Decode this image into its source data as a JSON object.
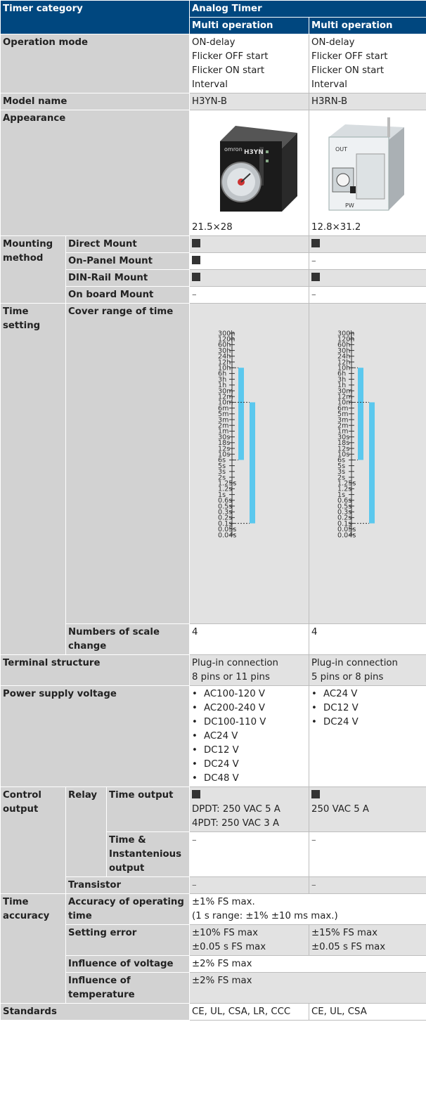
{
  "header": {
    "timer_category": "Timer category",
    "analog_timer": "Analog Timer",
    "multi_operation_1": "Multi operation",
    "multi_operation_2": "Multi operation"
  },
  "operation_mode": {
    "label": "Operation mode",
    "col1": [
      "ON-delay",
      "Flicker OFF start",
      "Flicker ON start",
      "Interval"
    ],
    "col2": [
      "ON-delay",
      "Flicker OFF start",
      "Flicker ON start",
      "Interval"
    ]
  },
  "model_name": {
    "label": "Model name",
    "col1": "H3YN-B",
    "col2": "H3RN-B"
  },
  "appearance": {
    "label": "Appearance",
    "col1_size": "21.5×28",
    "col2_size": "12.8×31.2",
    "col1_brand": "omron",
    "col1_model": "H3YN",
    "col2_out": "OUT",
    "col2_pw": "PW"
  },
  "mounting": {
    "label": "Mounting method",
    "rows": [
      {
        "label": "Direct Mount",
        "col1": "filled",
        "col2": "filled"
      },
      {
        "label": "On-Panel Mount",
        "col1": "filled",
        "col2": "–"
      },
      {
        "label": "DIN-Rail Mount",
        "col1": "filled",
        "col2": "filled"
      },
      {
        "label": "On board Mount",
        "col1": "–",
        "col2": "–"
      }
    ]
  },
  "time_setting": {
    "label": "Time setting",
    "cover_range_label": "Cover range of time",
    "scale_change_label": "Numbers of scale change",
    "scale_change_col1": "4",
    "scale_change_col2": "4"
  },
  "chart_data": {
    "type": "range",
    "ticks": [
      "300h",
      "120h",
      "60h",
      "30h",
      "24h",
      "12h",
      "10h",
      "6h",
      "3h",
      "1h",
      "30m",
      "12m",
      "10m",
      "6m",
      "5m",
      "3m",
      "2m",
      "1m",
      "30s",
      "18s",
      "12s",
      "10s",
      "6s",
      "5s",
      "3s",
      "2s",
      "1.25s",
      "1.2s",
      "1s",
      "0.6s",
      "0.5s",
      "0.3s",
      "0.2s",
      "0.1s",
      "0.05s",
      "0.04s"
    ],
    "color": "#5bc8ee",
    "series": [
      {
        "model": "H3YN-B",
        "ranges": [
          {
            "from": "6s",
            "to": "10h"
          },
          {
            "from": "0.1s",
            "to": "10m"
          }
        ]
      },
      {
        "model": "H3RN-B",
        "ranges": [
          {
            "from": "6s",
            "to": "10h"
          },
          {
            "from": "0.1s",
            "to": "10m"
          }
        ]
      }
    ]
  },
  "terminal": {
    "label": "Terminal structure",
    "col1": [
      "Plug-in connection",
      "8 pins or 11 pins"
    ],
    "col2": [
      "Plug-in connection",
      "5 pins or 8 pins"
    ]
  },
  "power": {
    "label": "Power supply voltage",
    "col1": [
      "AC100-120 V",
      "AC200-240 V",
      "DC100-110 V",
      "AC24 V",
      "DC12 V",
      "DC24 V",
      "DC48 V"
    ],
    "col2": [
      "AC24 V",
      "DC12 V",
      "DC24 V"
    ]
  },
  "control": {
    "label": "Control output",
    "relay": "Relay",
    "time_output": "Time output",
    "time_output_col1": [
      "DPDT: 250 VAC 5 A",
      "4PDT: 250 VAC 3 A"
    ],
    "time_output_col2": [
      "250 VAC 5 A"
    ],
    "time_inst_label": "Time & Instantenious output",
    "time_inst_col1": "–",
    "time_inst_col2": "–",
    "transistor": "Transistor",
    "transistor_col1": "–",
    "transistor_col2": "–"
  },
  "accuracy": {
    "label": "Time accuracy",
    "operating_label": "Accuracy of operating time",
    "operating_val": [
      "±1% FS max.",
      "(1 s range: ±1% ±10 ms max.)"
    ],
    "setting_label": "Setting error",
    "setting_col1": [
      "±10% FS max",
      "±0.05 s FS max"
    ],
    "setting_col2": [
      "±15% FS max",
      "±0.05 s FS max"
    ],
    "voltage_label": "Influence of voltage",
    "voltage_val": "±2% FS max",
    "temp_label": "Influence of temperature",
    "temp_val": "±2% FS max"
  },
  "standards": {
    "label": "Standards",
    "col1": "CE, UL, CSA, LR, CCC",
    "col2": "CE, UL, CSA"
  }
}
